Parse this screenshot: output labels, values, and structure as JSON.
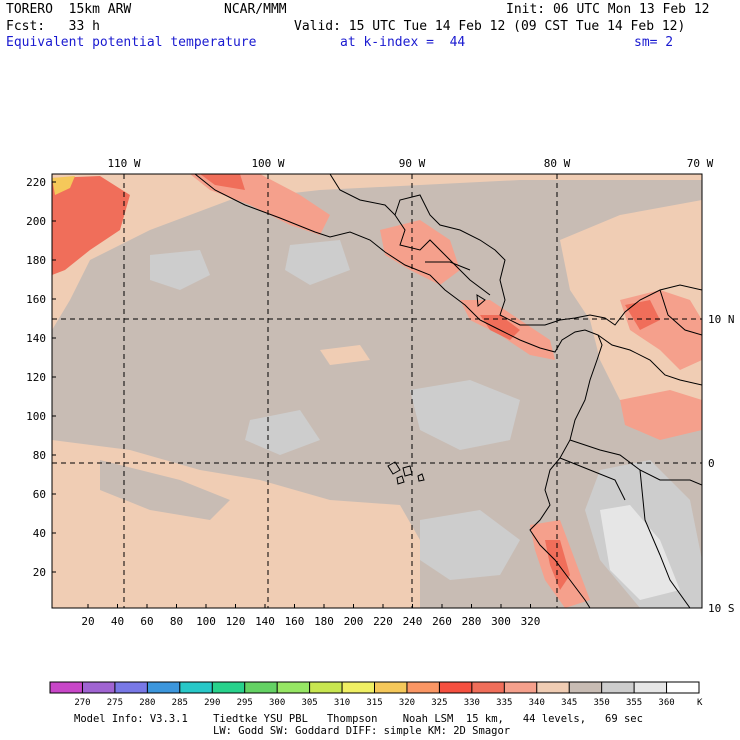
{
  "header": {
    "model": "TORERO  15km ARW",
    "org": "NCAR/MMM",
    "init": "Init: 06 UTC Mon 13 Feb 12",
    "fcst": "Fcst:   33 h",
    "valid": "Valid: 15 UTC Tue 14 Feb 12 (09 CST Tue 14 Feb 12)",
    "field": "Equivalent potential temperature",
    "level": "at k-index =  44",
    "smooth": "sm= 2"
  },
  "map": {
    "top_longitudes": [
      "110 W",
      "100 W",
      "90 W",
      "80 W",
      "70 W"
    ],
    "right_latitudes": [
      "10 N",
      "0",
      "10 S"
    ],
    "x_grid_ticks": [
      "20",
      "40",
      "60",
      "80",
      "100",
      "120",
      "140",
      "160",
      "180",
      "200",
      "220",
      "240",
      "260",
      "280",
      "300",
      "320"
    ],
    "y_grid_ticks": [
      "220",
      "200",
      "180",
      "160",
      "140",
      "120",
      "100",
      "80",
      "60",
      "40",
      "20"
    ]
  },
  "colorbar": {
    "labels": [
      "270",
      "275",
      "280",
      "285",
      "290",
      "295",
      "300",
      "305",
      "310",
      "315",
      "320",
      "325",
      "330",
      "335",
      "340",
      "345",
      "350",
      "355",
      "360"
    ],
    "unit": "K",
    "colors": [
      "#c846c8",
      "#a064d2",
      "#7878e6",
      "#3c96dc",
      "#28c8c8",
      "#28d28c",
      "#64d264",
      "#96e664",
      "#c8e650",
      "#f0f064",
      "#f5c85a",
      "#fa9664",
      "#f55040",
      "#f06e5a",
      "#f5a08c",
      "#f0cdb4",
      "#c8bcb4",
      "#cdcdcd",
      "#e6e6e6",
      "#ffffff"
    ]
  },
  "footer": {
    "line1": "Model Info: V3.3.1    Tiedtke YSU PBL   Thompson    Noah LSM  15 km,   44 levels,   69 sec",
    "line2": "LW: Godd SW: Goddard DIFF: simple KM: 2D Smagor"
  }
}
